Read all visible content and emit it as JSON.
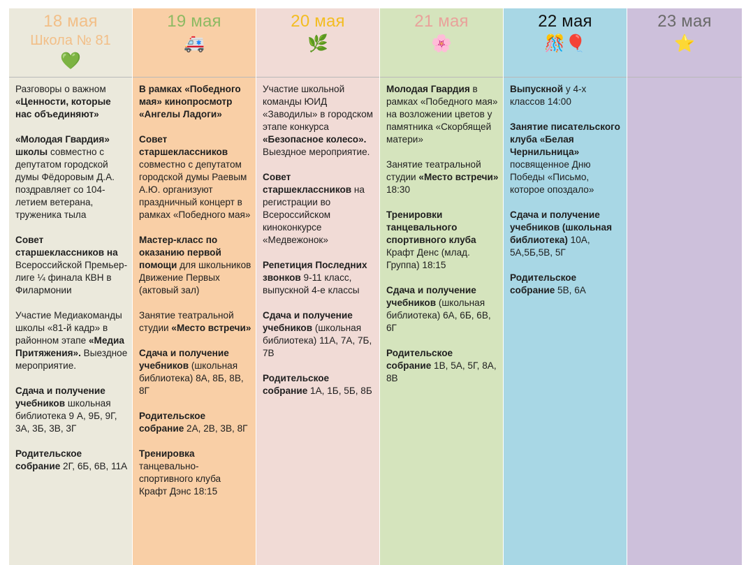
{
  "columns": [
    {
      "date": "18 мая",
      "subtitle": "Школа № 81",
      "emoji": "💚",
      "events": [
        [
          {
            "t": "Разговоры о важном "
          },
          {
            "b": "«Ценности, которые нас объединяют»"
          }
        ],
        [
          {
            "b": "«Молодая Гвардия» школы"
          },
          {
            "t": " совместно с депутатом городской думы Фёдоровым Д.А. поздравляет со 104-летием ветерана, труженика тыла"
          }
        ],
        [
          {
            "b": "Совет старшеклассников на"
          },
          {
            "t": " Всероссийской Премьер-лиге ¼ финала КВН в Филармонии"
          }
        ],
        [
          {
            "t": "Участие Медиакоманды школы «81-й кадр» в районном этапе "
          },
          {
            "b": "«Медиа Притяжения»."
          },
          {
            "t": " Выездное мероприятие."
          }
        ],
        [
          {
            "b": "Сдача и получение учебников"
          },
          {
            "t": " школьная библиотека 9 А, 9Б, 9Г, 3А, 3Б, 3В, 3Г"
          }
        ],
        [
          {
            "b": "Родительское собрание"
          },
          {
            "t": " 2Г, 6Б, 6В, 11А"
          }
        ]
      ]
    },
    {
      "date": "19 мая",
      "emoji": "🚑",
      "events": [
        [
          {
            "b": "В рамках «Победного мая» кинопросмотр «Ангелы Ладоги»"
          }
        ],
        [
          {
            "b": "Совет старшеклассников"
          },
          {
            "t": " совместно с депутатом городской думы Раевым А.Ю. организуют праздничный концерт в рамках «Победного мая»"
          }
        ],
        [
          {
            "b": "Мастер-класс по оказанию первой помощи"
          },
          {
            "t": " для школьников Движение Первых (актовый зал)"
          }
        ],
        [
          {
            "t": "Занятие театральной студии "
          },
          {
            "b": "«Место встречи»"
          }
        ],
        [
          {
            "b": "Сдача и получение учебников"
          },
          {
            "t": " (школьная библиотека) 8А, 8Б, 8В, 8Г"
          }
        ],
        [
          {
            "b": "Родительское собрание"
          },
          {
            "t": " 2А, 2В, 3В, 8Г"
          }
        ],
        [
          {
            "b": "Тренировка"
          },
          {
            "t": " танцевально-спортивного клуба Крафт Дэнс 18:15"
          }
        ]
      ]
    },
    {
      "date": "20 мая",
      "emoji": "🌿",
      "events": [
        [
          {
            "t": "Участие школьной команды ЮИД «Заводилы» в городском этапе конкурса "
          },
          {
            "b": "«Безопасное колесо»."
          },
          {
            "t": " Выездное мероприятие."
          }
        ],
        [
          {
            "b": "Совет старшеклассников"
          },
          {
            "t": " на регистрации во Всероссийском киноконкурсе «Медвежонок»"
          }
        ],
        [
          {
            "b": "Репетиция Последних звонков"
          },
          {
            "t": " 9-11 класс, выпускной 4-е классы"
          }
        ],
        [
          {
            "b": "Сдача и получение учебников"
          },
          {
            "t": " (школьная библиотека) 11А, 7А, 7Б, 7В"
          }
        ],
        [
          {
            "b": "Родительское собрание"
          },
          {
            "t": " 1А, 1Б, 5Б, 8Б"
          }
        ]
      ]
    },
    {
      "date": "21 мая",
      "emoji": "🌸",
      "events": [
        [
          {
            "b": "Молодая Гвардия"
          },
          {
            "t": " в рамках «Победного мая» на возложении цветов у памятника «Скорбящей матери»"
          }
        ],
        [
          {
            "t": "Занятие театральной студии "
          },
          {
            "b": "«Место встречи»"
          },
          {
            "t": " 18:30"
          }
        ],
        [
          {
            "b": "Тренировки танцевального спортивного клуба"
          },
          {
            "t": " Крафт Денс (млад. Группа) 18:15"
          }
        ],
        [
          {
            "b": "Сдача и получение учебников"
          },
          {
            "t": " (школьная библиотека) 6А, 6Б, 6В, 6Г"
          }
        ],
        [
          {
            "b": "Родительское собрание"
          },
          {
            "t": " 1В, 5А, 5Г, 8А, 8В"
          }
        ]
      ]
    },
    {
      "date": "22 мая",
      "emoji": "🎊🎈",
      "events": [
        [
          {
            "b": "Выпускной"
          },
          {
            "t": " у 4-х классов 14:00"
          }
        ],
        [
          {
            "b": "Занятие писательского клуба «Белая Чернильница»"
          },
          {
            "t": " посвященное Дню Победы «Письмо, которое опоздало»"
          }
        ],
        [
          {
            "b": "Сдача и получение учебников (школьная библиотека)"
          },
          {
            "t": " 10А, 5А,5Б,5В, 5Г"
          }
        ],
        [
          {
            "b": "Родительское собрание"
          },
          {
            "t": " 5В, 6А"
          }
        ]
      ]
    },
    {
      "date": "23 мая",
      "emoji": "⭐",
      "events": []
    }
  ]
}
